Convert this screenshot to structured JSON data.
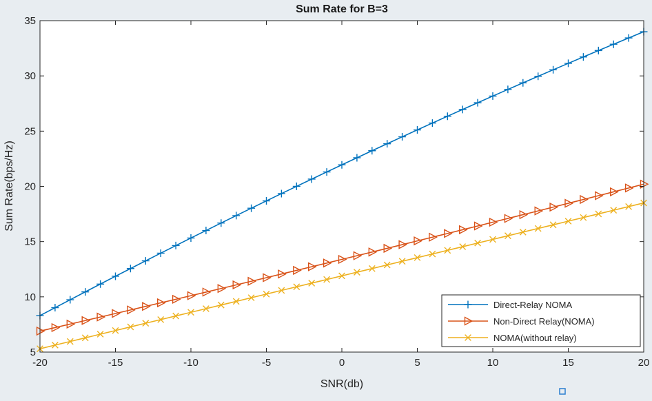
{
  "chart_data": {
    "type": "line",
    "title": "Sum Rate for B=3",
    "xlabel": "SNR(db)",
    "ylabel": "Sum Rate(bps/Hz)",
    "xlim": [
      -20,
      20
    ],
    "ylim": [
      5,
      35
    ],
    "xticks": [
      -20,
      -15,
      -10,
      -5,
      0,
      5,
      10,
      15,
      20
    ],
    "yticks": [
      5,
      10,
      15,
      20,
      25,
      30,
      35
    ],
    "grid": false,
    "legend_position": "bottom-right",
    "x_step": 1,
    "series": [
      {
        "name": "Direct-Relay NOMA",
        "color": "#0072bd",
        "marker": "plus",
        "start": 8.3,
        "end": 34.0,
        "curve": 0.02
      },
      {
        "name": "Non-Direct Relay(NOMA)",
        "color": "#d95319",
        "marker": "triangle-right",
        "start": 6.9,
        "end": 20.2,
        "curve": -0.004
      },
      {
        "name": "NOMA(without relay)",
        "color": "#edb120",
        "marker": "x",
        "start": 5.3,
        "end": 18.5,
        "curve": 0.0
      }
    ]
  }
}
